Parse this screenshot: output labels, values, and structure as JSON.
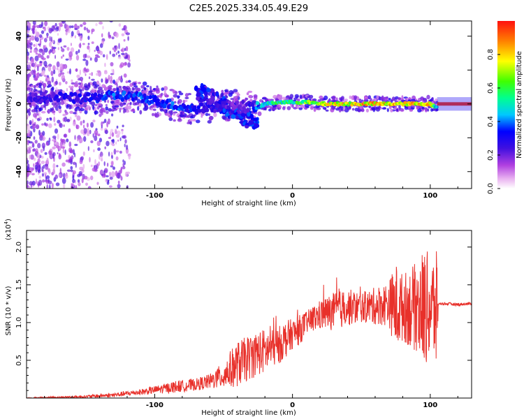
{
  "chart_data": [
    {
      "type": "heatmap",
      "title": "C2E5.2025.334.05.49.E29",
      "xlabel": "Height of straight line (km)",
      "ylabel": "Frequency (Hz)",
      "xlim": [
        -193,
        130
      ],
      "ylim": [
        -50,
        49
      ],
      "xticks": [
        -100,
        0,
        100
      ],
      "yticks": [
        -40,
        -20,
        0,
        20,
        40
      ],
      "xtick_labels": [
        "-100",
        "0",
        "100"
      ],
      "ytick_labels": [
        "-40",
        "-20",
        "0",
        "20",
        "40"
      ],
      "ridge": {
        "x": [
          -193,
          -170,
          -150,
          -130,
          -110,
          -100,
          -90,
          -80,
          -70,
          -60,
          -50,
          -40,
          -30,
          -24,
          -20,
          -10,
          0,
          10,
          20,
          40,
          60,
          80,
          100,
          104,
          110,
          130
        ],
        "freq": [
          3,
          4,
          3,
          5,
          4,
          2,
          0,
          -2,
          -3,
          -2,
          -1,
          0,
          -2,
          -2,
          0,
          1,
          1,
          1,
          0,
          0,
          0,
          0,
          0,
          -2,
          0,
          0
        ],
        "amplitude": [
          0.25,
          0.3,
          0.35,
          0.4,
          0.4,
          0.35,
          0.4,
          0.4,
          0.35,
          0.3,
          0.25,
          0.2,
          0.3,
          0.5,
          0.55,
          0.6,
          0.6,
          0.7,
          0.8,
          0.85,
          0.9,
          0.9,
          0.9,
          0.5,
          0.95,
          0.98
        ]
      },
      "colorbar": {
        "label": "Normalized spectral amplitude",
        "range": [
          0,
          1
        ],
        "ticks": [
          0.0,
          0.2,
          0.4,
          0.6,
          0.8
        ],
        "tick_labels": [
          "0.0",
          "0.2",
          "0.4",
          "0.6",
          "0.8"
        ],
        "colors": [
          "#ffffff",
          "#d060e0",
          "#6010e0",
          "#0000ff",
          "#00c8ff",
          "#00ff80",
          "#60ff00",
          "#ffff00",
          "#ff8000",
          "#ff0000"
        ]
      }
    },
    {
      "type": "line",
      "title": "",
      "xlabel": "Height of straight line (km)",
      "ylabel": "SNR (10 * v/v)",
      "y_multiplier_label": "(x10",
      "y_multiplier_exp": "4",
      "xlim": [
        -193,
        130
      ],
      "ylim": [
        0,
        2.22
      ],
      "xticks": [
        -100,
        0,
        100
      ],
      "yticks": [
        0.5,
        1.0,
        1.5,
        2.0
      ],
      "xtick_labels": [
        "-100",
        "0",
        "100"
      ],
      "ytick_labels": [
        "0.5",
        "1.0",
        "1.5",
        "2.0"
      ],
      "series": [
        {
          "name": "SNR",
          "color": "#e8302a",
          "x": [
            -193,
            -170,
            -150,
            -130,
            -110,
            -95,
            -85,
            -70,
            -60,
            -50,
            -45,
            -40,
            -35,
            -30,
            -25,
            -20,
            -15,
            -10,
            -5,
            0,
            5,
            10,
            20,
            30,
            40,
            50,
            60,
            70,
            75,
            80,
            90,
            95,
            100,
            105,
            106,
            110,
            120,
            130
          ],
          "values": [
            0.0,
            0.01,
            0.02,
            0.04,
            0.08,
            0.12,
            0.15,
            0.18,
            0.22,
            0.3,
            0.38,
            0.45,
            0.5,
            0.55,
            0.6,
            0.62,
            0.65,
            0.7,
            0.78,
            0.85,
            0.9,
            1.0,
            1.1,
            1.15,
            1.2,
            1.2,
            1.22,
            1.25,
            1.2,
            1.2,
            1.2,
            1.2,
            1.2,
            1.15,
            1.25,
            1.25,
            1.24,
            1.25
          ],
          "noise_amplitude": [
            0.01,
            0.01,
            0.02,
            0.03,
            0.04,
            0.06,
            0.08,
            0.08,
            0.1,
            0.18,
            0.25,
            0.3,
            0.3,
            0.3,
            0.3,
            0.3,
            0.25,
            0.25,
            0.25,
            0.2,
            0.2,
            0.15,
            0.2,
            0.25,
            0.25,
            0.2,
            0.25,
            0.3,
            0.6,
            0.45,
            0.6,
            0.8,
            0.7,
            0.8,
            0.01,
            0.02,
            0.02,
            0.02
          ]
        }
      ]
    }
  ]
}
